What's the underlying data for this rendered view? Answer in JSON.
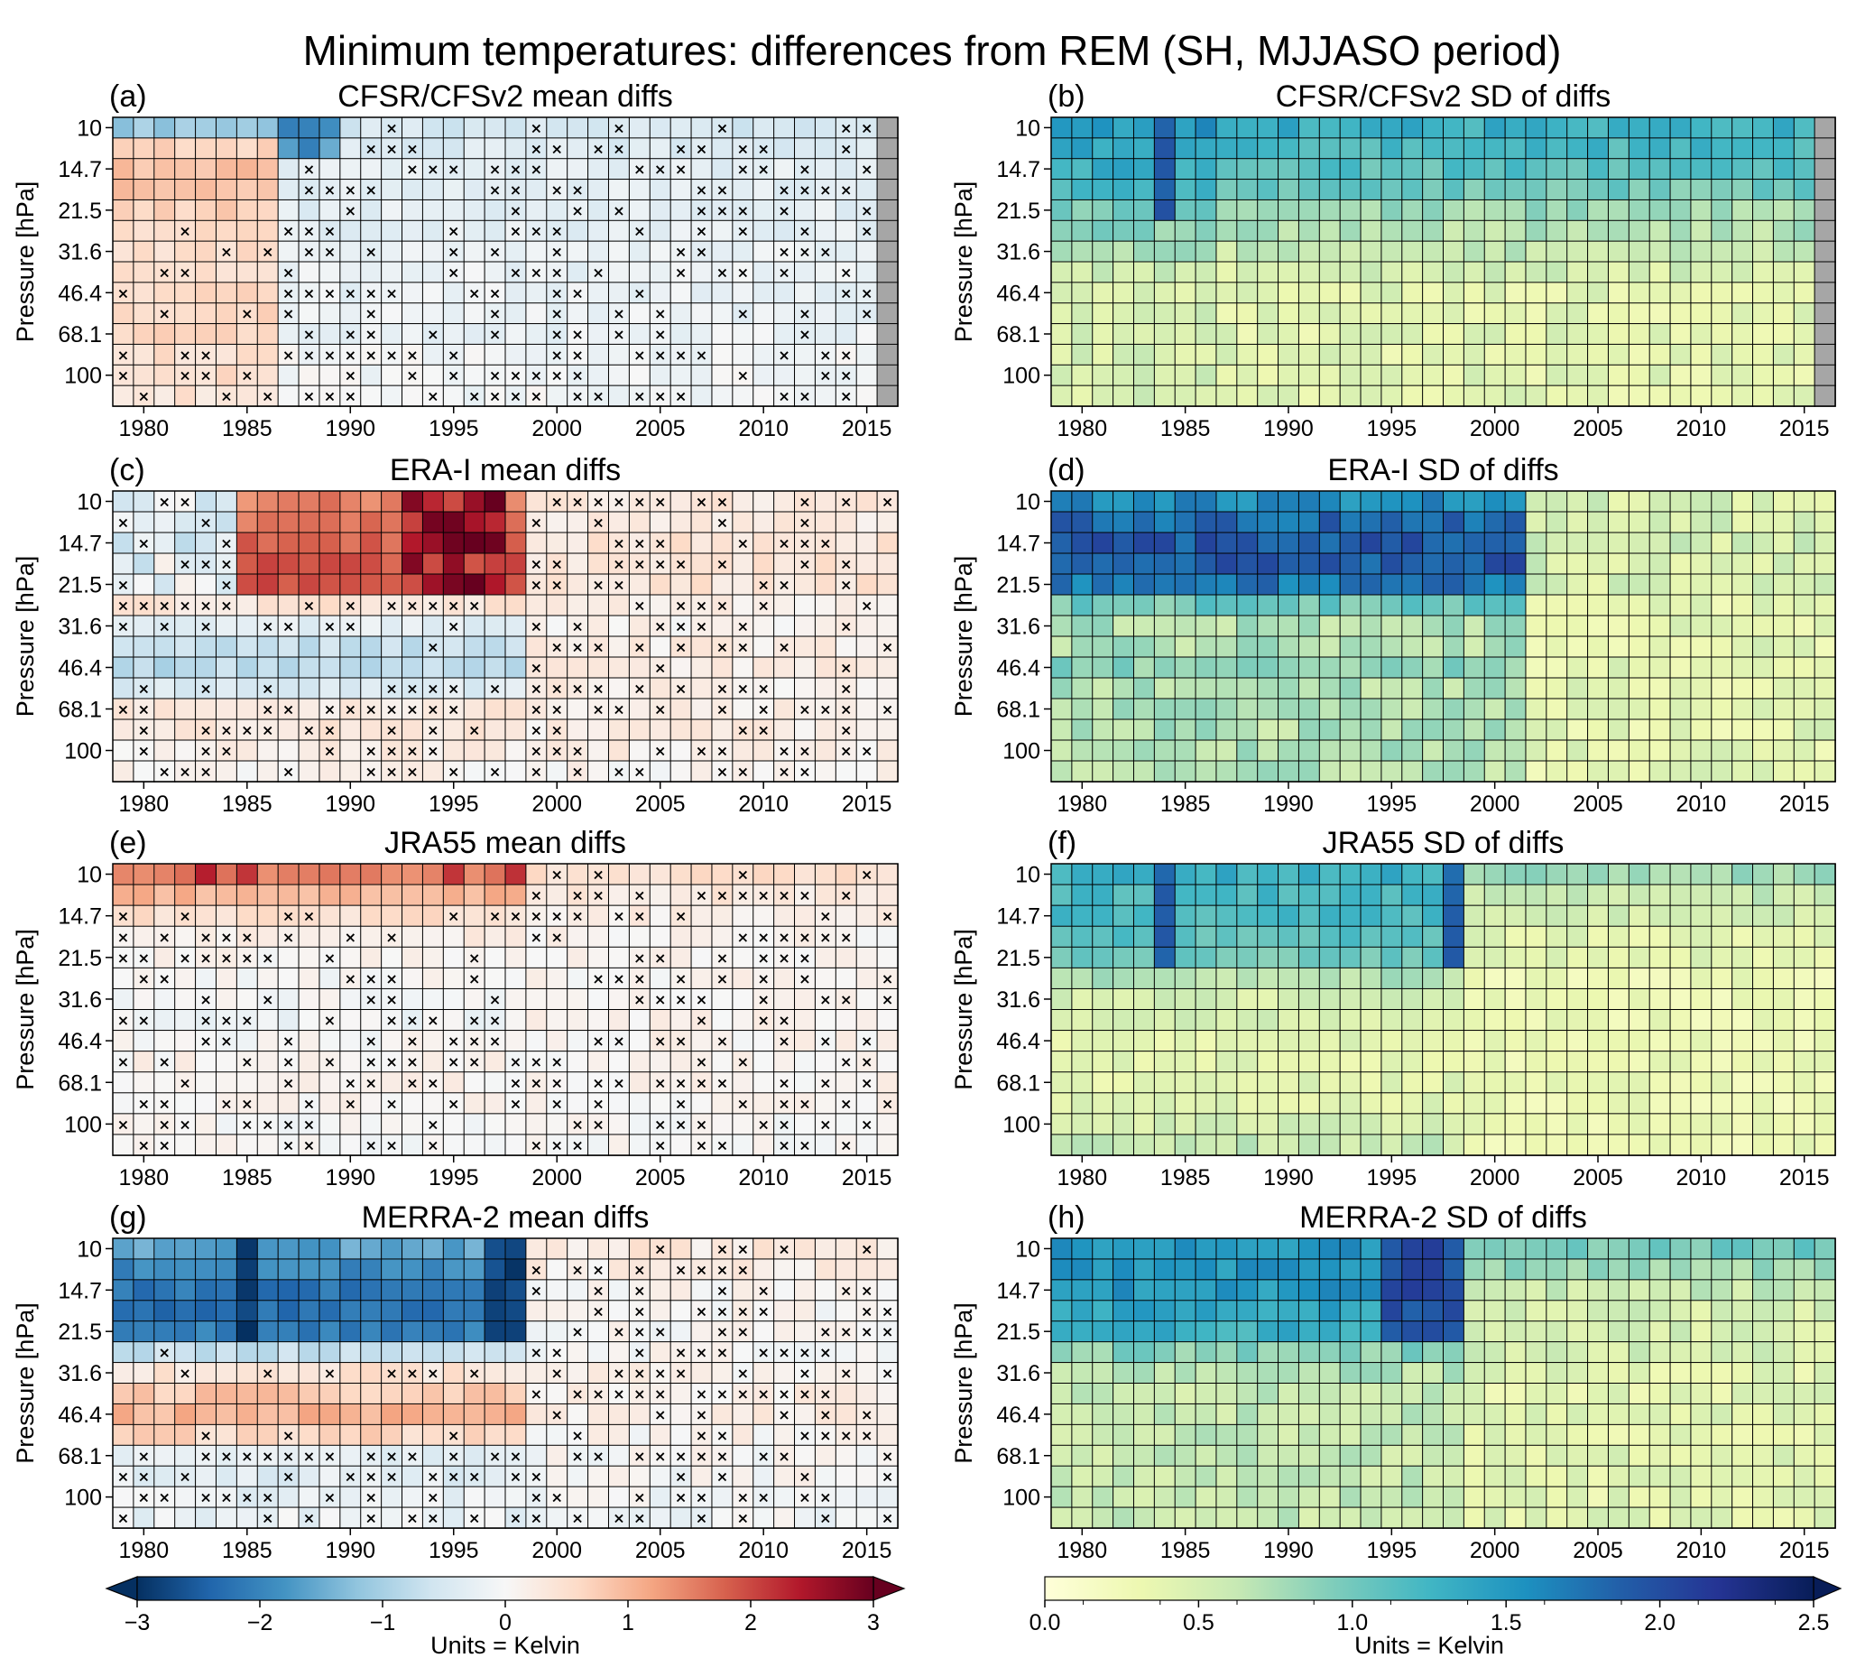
{
  "title": "Minimum temperatures: differences from REM (SH, MJJASO period)",
  "units_label": "Units = Kelvin",
  "colorbar_mean": {
    "colormap": "RdBu_r",
    "range": [
      -3,
      3
    ],
    "ticks": [
      "−3",
      "−2",
      "−1",
      "0",
      "1",
      "2",
      "3"
    ],
    "extend": "both"
  },
  "colorbar_sd": {
    "colormap": "YlGnBu",
    "range": [
      0,
      2.5
    ],
    "ticks": [
      "0.0",
      "0.5",
      "1.0",
      "1.5",
      "2.0",
      "2.5"
    ],
    "extend": "max"
  },
  "colors": {
    "missing_data": "#a6a6a6",
    "grid_line": "#000000"
  },
  "chart_data": [
    {
      "type": "heatmap",
      "panel": "(a)",
      "title": "CFSR/CFSv2 mean diffs",
      "kind": "mean",
      "x_range": [
        1979,
        2016
      ],
      "x_ticks": [
        "1980",
        "1985",
        "1990",
        "1995",
        "2000",
        "2005",
        "2010",
        "2015"
      ],
      "ylabel": "Pressure [hPa]",
      "y_ticks": [
        "10",
        "14.7",
        "21.5",
        "31.6",
        "46.4",
        "68.1",
        "100"
      ],
      "levels_hPa": [
        10,
        12,
        14.7,
        17,
        21.5,
        25,
        31.6,
        38,
        46.4,
        56,
        68.1,
        82,
        100,
        120
      ],
      "missing_years": [
        2016
      ],
      "row_profiles": [
        [
          -1.1,
          -0.5
        ],
        [
          0.7,
          -0.4
        ],
        [
          0.9,
          -0.3
        ],
        [
          0.9,
          -0.3
        ],
        [
          0.7,
          -0.3
        ],
        [
          0.5,
          -0.3
        ],
        [
          0.5,
          -0.2
        ],
        [
          0.5,
          -0.2
        ],
        [
          0.6,
          -0.2
        ],
        [
          0.6,
          -0.2
        ],
        [
          0.6,
          -0.2
        ],
        [
          0.5,
          -0.1
        ],
        [
          0.5,
          -0.1
        ],
        [
          0.4,
          -0.1
        ]
      ],
      "note": "values estimated from colour: positive (red) before ~1987, negative (blue) afterwards; strongest blue near 10 hPa around 1987-1989"
    },
    {
      "type": "heatmap",
      "panel": "(b)",
      "title": "CFSR/CFSv2 SD of diffs",
      "kind": "sd",
      "x_range": [
        1979,
        2016
      ],
      "x_ticks": [
        "1980",
        "1985",
        "1990",
        "1995",
        "2000",
        "2005",
        "2010",
        "2015"
      ],
      "ylabel": "Pressure [hPa]",
      "y_ticks": [
        "10",
        "14.7",
        "21.5",
        "31.6",
        "46.4",
        "68.1",
        "100"
      ],
      "missing_years": [
        2016
      ],
      "row_profiles": [
        [
          1.5,
          1.3
        ],
        [
          1.4,
          1.2
        ],
        [
          1.3,
          1.1
        ],
        [
          1.2,
          1.0
        ],
        [
          1.0,
          0.8
        ],
        [
          0.9,
          0.7
        ],
        [
          0.8,
          0.6
        ],
        [
          0.6,
          0.5
        ],
        [
          0.5,
          0.4
        ],
        [
          0.5,
          0.4
        ],
        [
          0.5,
          0.4
        ],
        [
          0.5,
          0.4
        ],
        [
          0.5,
          0.4
        ],
        [
          0.5,
          0.4
        ]
      ],
      "note": "highest SD (~1.8) near 10-21.5 hPa in 1984"
    },
    {
      "type": "heatmap",
      "panel": "(c)",
      "title": "ERA-I mean diffs",
      "kind": "mean",
      "x_range": [
        1979,
        2016
      ],
      "x_ticks": [
        "1980",
        "1985",
        "1990",
        "1995",
        "2000",
        "2005",
        "2010",
        "2015"
      ],
      "ylabel": "Pressure [hPa]",
      "y_ticks": [
        "10",
        "14.7",
        "21.5",
        "31.6",
        "46.4",
        "68.1",
        "100"
      ],
      "row_profiles": [
        [
          1.5,
          0.3
        ],
        [
          1.6,
          0.3
        ],
        [
          1.8,
          0.4
        ],
        [
          1.9,
          0.4
        ],
        [
          1.9,
          0.4
        ],
        [
          0.4,
          0.2
        ],
        [
          -0.3,
          0.1
        ],
        [
          -0.7,
          0.2
        ],
        [
          -0.8,
          0.2
        ],
        [
          -0.4,
          0.2
        ],
        [
          0.3,
          0.2
        ],
        [
          0.3,
          0.2
        ],
        [
          0.2,
          0.2
        ],
        [
          0.1,
          0.1
        ]
      ],
      "note": "strong warm differences (up to ~3 K) at 10-21.5 hPa around 1993-1997; negative near 31.6-46.4 hPa before ~1999"
    },
    {
      "type": "heatmap",
      "panel": "(d)",
      "title": "ERA-I SD of diffs",
      "kind": "sd",
      "x_range": [
        1979,
        2016
      ],
      "x_ticks": [
        "1980",
        "1985",
        "1990",
        "1995",
        "2000",
        "2005",
        "2010",
        "2015"
      ],
      "ylabel": "Pressure [hPa]",
      "y_ticks": [
        "10",
        "14.7",
        "21.5",
        "31.6",
        "46.4",
        "68.1",
        "100"
      ],
      "row_profiles": [
        [
          1.6,
          0.5
        ],
        [
          1.8,
          0.5
        ],
        [
          1.9,
          0.5
        ],
        [
          1.9,
          0.5
        ],
        [
          1.7,
          0.5
        ],
        [
          1.0,
          0.4
        ],
        [
          0.7,
          0.4
        ],
        [
          0.7,
          0.4
        ],
        [
          0.9,
          0.4
        ],
        [
          0.7,
          0.4
        ],
        [
          0.7,
          0.4
        ],
        [
          0.7,
          0.4
        ],
        [
          0.7,
          0.4
        ],
        [
          0.7,
          0.4
        ]
      ],
      "note": "high SD (~2) at 10-21.5 hPa before ~2001"
    },
    {
      "type": "heatmap",
      "panel": "(e)",
      "title": "JRA55 mean diffs",
      "kind": "mean",
      "x_range": [
        1979,
        2016
      ],
      "x_ticks": [
        "1980",
        "1985",
        "1990",
        "1995",
        "2000",
        "2005",
        "2010",
        "2015"
      ],
      "ylabel": "Pressure [hPa]",
      "y_ticks": [
        "10",
        "14.7",
        "21.5",
        "31.6",
        "46.4",
        "68.1",
        "100"
      ],
      "row_profiles": [
        [
          1.5,
          0.5
        ],
        [
          1.0,
          0.3
        ],
        [
          0.5,
          0.2
        ],
        [
          0.2,
          0.1
        ],
        [
          0.1,
          0.1
        ],
        [
          0.0,
          0.1
        ],
        [
          0.0,
          0.1
        ],
        [
          -0.1,
          0.1
        ],
        [
          0.0,
          0.1
        ],
        [
          0.1,
          0.1
        ],
        [
          0.1,
          0.1
        ],
        [
          0.1,
          0.1
        ],
        [
          0.0,
          0.0
        ],
        [
          0.0,
          0.0
        ]
      ],
      "note": "warm differences near 10 hPa (peaks in 1983, 1985, 1995, 1998); weak elsewhere"
    },
    {
      "type": "heatmap",
      "panel": "(f)",
      "title": "JRA55 SD of diffs",
      "kind": "sd",
      "x_range": [
        1979,
        2016
      ],
      "x_ticks": [
        "1980",
        "1985",
        "1990",
        "1995",
        "2000",
        "2005",
        "2010",
        "2015"
      ],
      "ylabel": "Pressure [hPa]",
      "y_ticks": [
        "10",
        "14.7",
        "21.5",
        "31.6",
        "46.4",
        "68.1",
        "100"
      ],
      "row_profiles": [
        [
          1.3,
          0.8
        ],
        [
          1.2,
          0.6
        ],
        [
          1.2,
          0.5
        ],
        [
          1.1,
          0.4
        ],
        [
          1.0,
          0.4
        ],
        [
          0.7,
          0.3
        ],
        [
          0.5,
          0.3
        ],
        [
          0.5,
          0.3
        ],
        [
          0.4,
          0.3
        ],
        [
          0.4,
          0.3
        ],
        [
          0.4,
          0.3
        ],
        [
          0.4,
          0.3
        ],
        [
          0.5,
          0.3
        ],
        [
          0.6,
          0.3
        ]
      ],
      "note": "highest SD (~1.9) at 10-21.5 hPa in 1984 and 1998"
    },
    {
      "type": "heatmap",
      "panel": "(g)",
      "title": "MERRA-2 mean diffs",
      "kind": "mean",
      "x_range": [
        1979,
        2016
      ],
      "x_ticks": [
        "1980",
        "1985",
        "1990",
        "1995",
        "2000",
        "2005",
        "2010",
        "2015"
      ],
      "ylabel": "Pressure [hPa]",
      "y_ticks": [
        "10",
        "14.7",
        "21.5",
        "31.6",
        "46.4",
        "68.1",
        "100"
      ],
      "row_profiles": [
        [
          -1.6,
          0.3
        ],
        [
          -1.9,
          0.2
        ],
        [
          -2.2,
          0.1
        ],
        [
          -2.3,
          0.0
        ],
        [
          -2.1,
          0.0
        ],
        [
          -0.7,
          0.0
        ],
        [
          0.4,
          0.1
        ],
        [
          0.8,
          0.2
        ],
        [
          1.0,
          0.2
        ],
        [
          0.6,
          0.1
        ],
        [
          -0.3,
          0.0
        ],
        [
          -0.3,
          0.0
        ],
        [
          -0.2,
          -0.1
        ],
        [
          -0.2,
          -0.1
        ]
      ],
      "note": "strong cold differences at 10-21.5 hPa before 1999; warm band at 31.6-46.4 hPa"
    },
    {
      "type": "heatmap",
      "panel": "(h)",
      "title": "MERRA-2 SD of diffs",
      "kind": "sd",
      "x_range": [
        1979,
        2016
      ],
      "x_ticks": [
        "1980",
        "1985",
        "1990",
        "1995",
        "2000",
        "2005",
        "2010",
        "2015"
      ],
      "ylabel": "Pressure [hPa]",
      "y_ticks": [
        "10",
        "14.7",
        "21.5",
        "31.6",
        "46.4",
        "68.1",
        "100"
      ],
      "row_profiles": [
        [
          1.5,
          1.0
        ],
        [
          1.5,
          0.8
        ],
        [
          1.5,
          0.6
        ],
        [
          1.4,
          0.5
        ],
        [
          1.3,
          0.5
        ],
        [
          0.9,
          0.5
        ],
        [
          0.7,
          0.4
        ],
        [
          0.6,
          0.4
        ],
        [
          0.6,
          0.4
        ],
        [
          0.6,
          0.4
        ],
        [
          0.6,
          0.4
        ],
        [
          0.6,
          0.4
        ],
        [
          0.6,
          0.4
        ],
        [
          0.6,
          0.4
        ]
      ],
      "note": "highest SD (~2) near 10-21.5 hPa in 1995-1998"
    }
  ]
}
